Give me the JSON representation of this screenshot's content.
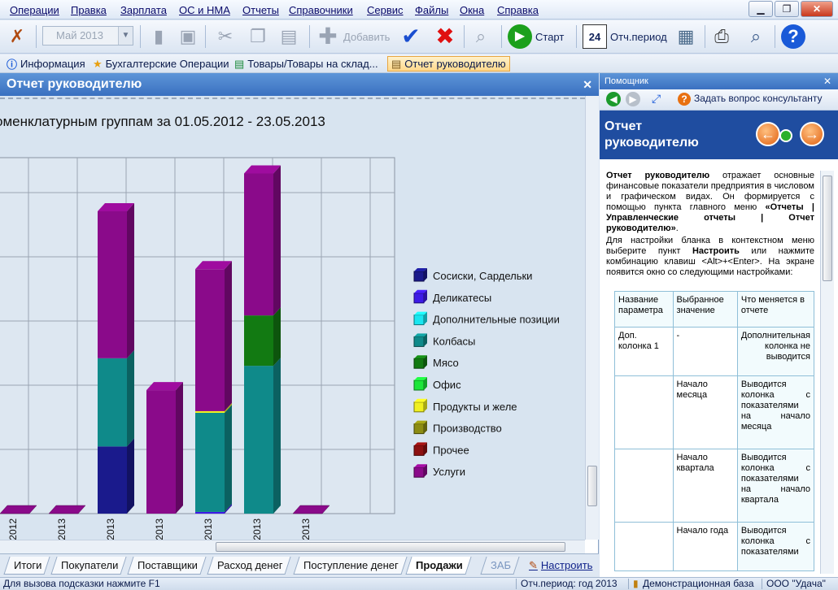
{
  "menu": [
    "Операции",
    "Правка",
    "Зарплата",
    "ОС и НМА",
    "Отчеты",
    "Справочники",
    "Сервис",
    "Файлы",
    "Окна",
    "Справка"
  ],
  "window_buttons": {
    "minimize": "▁",
    "restore": "❐",
    "close": "✕"
  },
  "toolbar": {
    "period_combo": "Май 2013",
    "add_label": "Добавить",
    "start_label": "Старт",
    "calendar_day": "24",
    "period_label": "Отч.период"
  },
  "quicktabs": [
    {
      "label": "Информация",
      "icon": "info-icon"
    },
    {
      "label": "Бухгалтерские Операции",
      "icon": "star-icon"
    },
    {
      "label": "Товары/Товары на склад...",
      "icon": "chart-icon"
    },
    {
      "label": "Отчет руководителю",
      "icon": "report-icon"
    }
  ],
  "doc": {
    "title": "Отчет руководителю",
    "close": "✕",
    "chart_title": "оменклатурным группам за 01.05.2012 - 23.05.2013"
  },
  "chart_data": {
    "type": "bar",
    "stacked": true,
    "categories": [
      "2012",
      "2012",
      "2013",
      "2013",
      "2013",
      "2013",
      "2013",
      "2013"
    ],
    "colors": {
      "Сосиски, Сардельки": "#1a1a8c",
      "Деликатесы": "#3d1be6",
      "Дополнительные позиции": "#19e6f0",
      "Колбасы": "#0f8a8a",
      "Мясо": "#127a12",
      "Офис": "#1ce63a",
      "Продукты и желе": "#f0f020",
      "Производство": "#8c8c12",
      "Прочее": "#8c1010",
      "Услуги": "#8a0a8a"
    },
    "series": [
      {
        "name": "Сосиски, Сардельки",
        "values": [
          0,
          0,
          0,
          80,
          0,
          0,
          0,
          0
        ]
      },
      {
        "name": "Деликатесы",
        "values": [
          0,
          0,
          0,
          0,
          0,
          2,
          0,
          0
        ]
      },
      {
        "name": "Дополнительные позиции",
        "values": [
          0,
          0,
          0,
          0,
          0,
          0,
          0,
          0
        ]
      },
      {
        "name": "Колбасы",
        "values": [
          0,
          0,
          0,
          105,
          0,
          118,
          176,
          0
        ]
      },
      {
        "name": "Мясо",
        "values": [
          0,
          0,
          0,
          0,
          0,
          0,
          60,
          0
        ]
      },
      {
        "name": "Офис",
        "values": [
          0,
          0,
          0,
          0,
          0,
          0,
          0,
          0
        ]
      },
      {
        "name": "Продукты и желе",
        "values": [
          0,
          0,
          0,
          0,
          0,
          2,
          0,
          0
        ]
      },
      {
        "name": "Производство",
        "values": [
          0,
          0,
          0,
          0,
          0,
          0,
          0,
          0
        ]
      },
      {
        "name": "Прочее",
        "values": [
          0,
          0,
          0,
          0,
          0,
          0,
          0,
          0
        ]
      },
      {
        "name": "Услуги",
        "values": [
          0,
          0,
          0,
          175,
          147,
          169,
          169,
          0
        ]
      }
    ],
    "ylim": [
      0,
      420
    ],
    "grid": true,
    "legend_position": "right"
  },
  "bottom_tabs": [
    "Итоги",
    "Покупатели",
    "Поставщики",
    "Расход денег",
    "Поступление денег",
    "Продажи",
    "ЗАБ",
    "Настроить"
  ],
  "help": {
    "panel_title": "Помощник",
    "ask_label": "Задать вопрос консультанту",
    "title": "Отчет руководителю",
    "p1_bold": "Отчет руководителю",
    "p1_text": " отражает основные финансовые показатели предприятия в числовом и графическом видах. Он формируется с помощью пункта главного меню ",
    "p1_menu": "«Отчеты | Управленческие отчеты | Отчет руководителю»",
    "p1_end": ".",
    "p2_a": "Для настройки бланка в контекстном меню выберите пункт ",
    "p2_bold": "Настроить",
    "p2_b": " или нажмите комбинацию клавиш <Alt>+<Enter>. На экране появится окно со следующими настройками:",
    "table_head": [
      "Название параметра",
      "Выбранное значение",
      "Что меняется в отчете"
    ],
    "rows": [
      [
        "Доп. колонка 1",
        "-",
        "Дополнительная колонка не выводится"
      ],
      [
        "",
        "Начало месяца",
        "Выводится колонка с показателями на начало месяца"
      ],
      [
        "",
        "Начало квартала",
        "Выводится колонка с показателями на начало квартала"
      ],
      [
        "",
        "Начало года",
        "Выводится колонка с показателями"
      ]
    ]
  },
  "status": {
    "hint": "Для вызова подсказки нажмите F1",
    "period": "Отч.период: год 2013",
    "db": "Демонстрационная база",
    "org": "ООО \"Удача\""
  }
}
